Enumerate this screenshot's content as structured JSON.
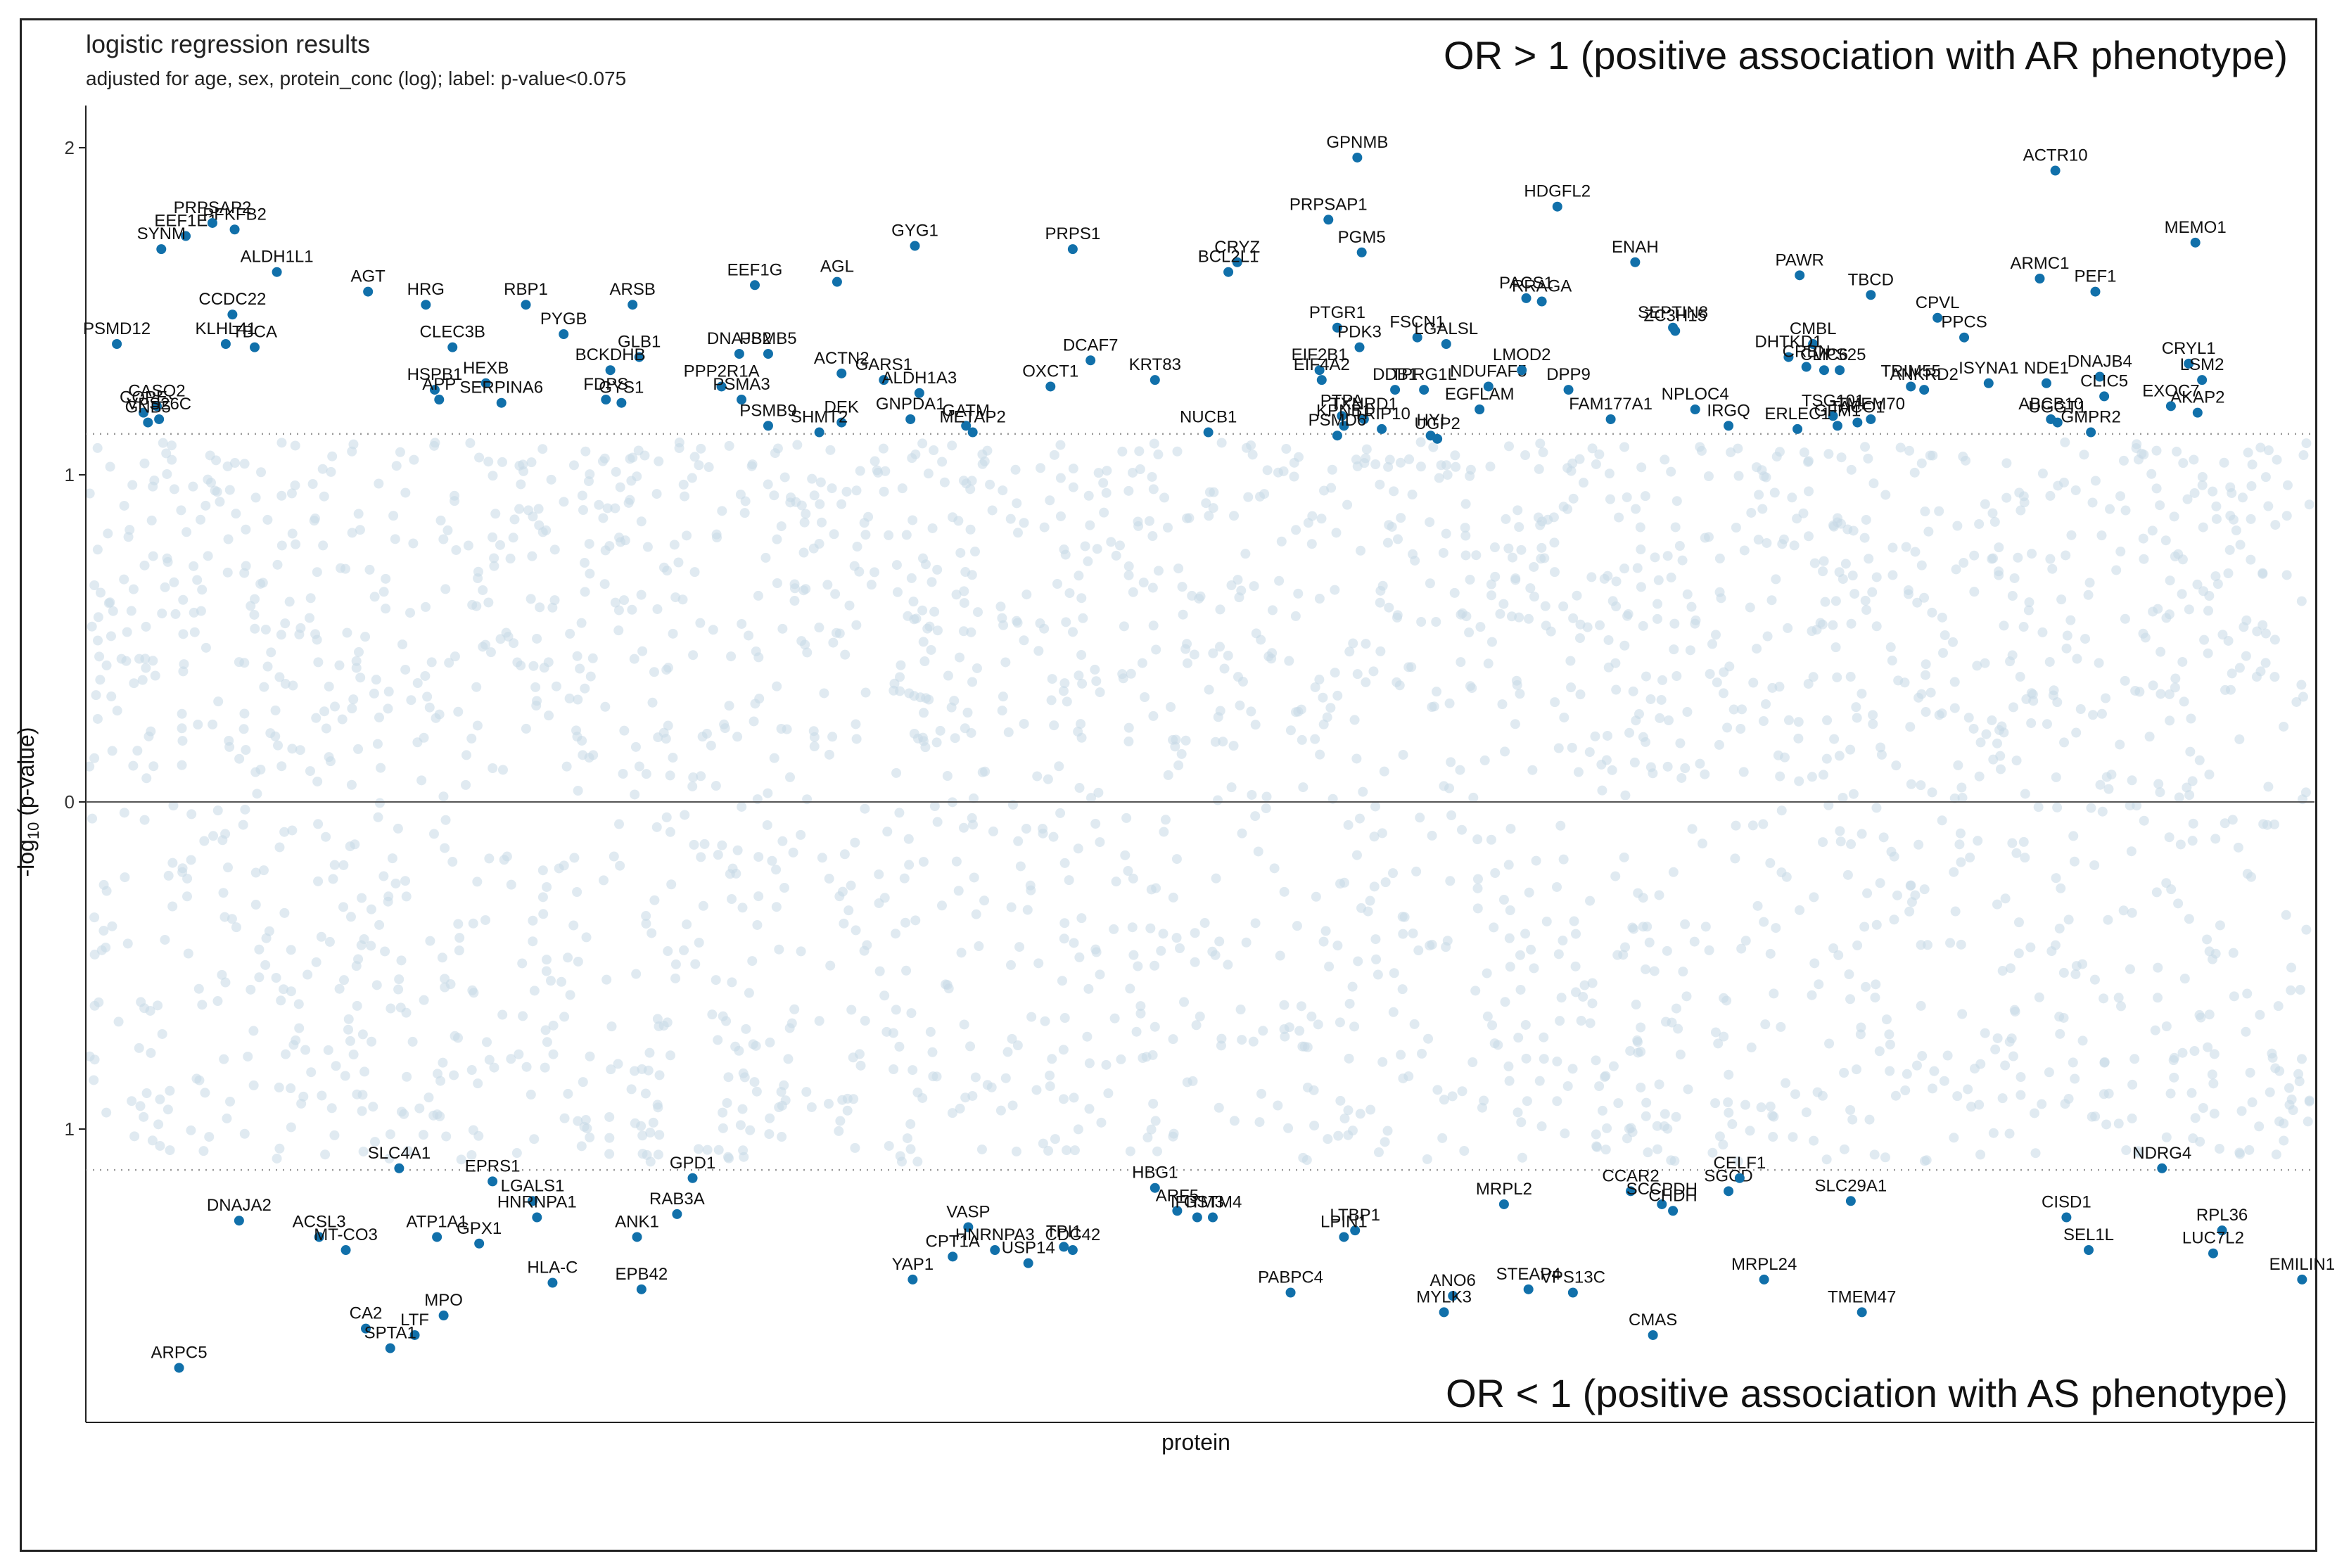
{
  "title": "logistic regression results",
  "subtitle": "adjusted for age, sex, protein_conc (log); label: p-value<0.075",
  "annotation_top": "OR > 1 (positive association with AR phenotype)",
  "annotation_bottom": "OR < 1 (positive association with AS phenotype)",
  "colors": {
    "point": "#1170aa",
    "background_point": "#c6d9e6",
    "axis": "#444444",
    "reference": "#999999"
  },
  "chart_data": {
    "type": "scatter",
    "title": "logistic regression results",
    "subtitle": "adjusted for age, sex, protein_conc (log); label: p-value<0.075",
    "xlabel": "protein",
    "ylabel": "-log10 (p-value)",
    "ylim": [
      -1.95,
      2.1
    ],
    "x_range": [
      0,
      100
    ],
    "y_ticks": [
      {
        "v": 2,
        "label": "2"
      },
      {
        "v": 1,
        "label": "1"
      },
      {
        "v": 0,
        "label": "0"
      },
      {
        "v": -1,
        "label": "1"
      }
    ],
    "threshold": 1.125,
    "background_point_count": 2600,
    "points": [
      {
        "label": "EEF1E1",
        "x": 4.4,
        "y": 1.73
      },
      {
        "label": "PRPSAP2",
        "x": 5.6,
        "y": 1.77
      },
      {
        "label": "PFKFB2",
        "x": 6.6,
        "y": 1.75
      },
      {
        "label": "SYNM",
        "x": 3.3,
        "y": 1.69
      },
      {
        "label": "ALDH1L1",
        "x": 8.5,
        "y": 1.62
      },
      {
        "label": "CCDC22",
        "x": 6.5,
        "y": 1.49
      },
      {
        "label": "KLHL41",
        "x": 6.2,
        "y": 1.4
      },
      {
        "label": "TBCA",
        "x": 7.5,
        "y": 1.39
      },
      {
        "label": "PSMD12",
        "x": 1.3,
        "y": 1.4
      },
      {
        "label": "COPE",
        "x": 2.5,
        "y": 1.19
      },
      {
        "label": "CASQ2",
        "x": 3.1,
        "y": 1.21
      },
      {
        "label": "GNB5",
        "x": 2.7,
        "y": 1.16
      },
      {
        "label": "VPS26C",
        "x": 3.2,
        "y": 1.17
      },
      {
        "label": "AGT",
        "x": 12.6,
        "y": 1.56
      },
      {
        "label": "HRG",
        "x": 15.2,
        "y": 1.52
      },
      {
        "label": "RBP1",
        "x": 19.7,
        "y": 1.52
      },
      {
        "label": "PYGB",
        "x": 21.4,
        "y": 1.43
      },
      {
        "label": "CLEC3B",
        "x": 16.4,
        "y": 1.39
      },
      {
        "label": "HSPB1",
        "x": 15.6,
        "y": 1.26
      },
      {
        "label": "APP",
        "x": 15.8,
        "y": 1.23
      },
      {
        "label": "HEXB",
        "x": 17.9,
        "y": 1.28
      },
      {
        "label": "SERPINA6",
        "x": 18.6,
        "y": 1.22
      },
      {
        "label": "ARSB",
        "x": 24.5,
        "y": 1.52
      },
      {
        "label": "GLB1",
        "x": 24.8,
        "y": 1.36
      },
      {
        "label": "FDPS",
        "x": 23.3,
        "y": 1.23
      },
      {
        "label": "BCKDHB",
        "x": 23.5,
        "y": 1.32
      },
      {
        "label": "GYS1",
        "x": 24.0,
        "y": 1.22
      },
      {
        "label": "EEF1G",
        "x": 30.0,
        "y": 1.58
      },
      {
        "label": "AGL",
        "x": 33.7,
        "y": 1.59
      },
      {
        "label": "GYG1",
        "x": 37.2,
        "y": 1.7
      },
      {
        "label": "DNAJB2",
        "x": 29.3,
        "y": 1.37
      },
      {
        "label": "PPP2R1A",
        "x": 28.5,
        "y": 1.27
      },
      {
        "label": "PSMB5",
        "x": 30.6,
        "y": 1.37
      },
      {
        "label": "PSMA3",
        "x": 29.4,
        "y": 1.23
      },
      {
        "label": "PSMB9",
        "x": 30.6,
        "y": 1.15
      },
      {
        "label": "DEK",
        "x": 33.9,
        "y": 1.16
      },
      {
        "label": "SHMT2",
        "x": 32.9,
        "y": 1.13
      },
      {
        "label": "ACTN2",
        "x": 33.9,
        "y": 1.31
      },
      {
        "label": "GARS1",
        "x": 35.8,
        "y": 1.29
      },
      {
        "label": "ALDH1A3",
        "x": 37.4,
        "y": 1.25
      },
      {
        "label": "GNPDA1",
        "x": 37.0,
        "y": 1.17
      },
      {
        "label": "GATM",
        "x": 39.5,
        "y": 1.15
      },
      {
        "label": "METAP2",
        "x": 39.8,
        "y": 1.13
      },
      {
        "label": "PRPS1",
        "x": 44.3,
        "y": 1.69
      },
      {
        "label": "DCAF7",
        "x": 45.1,
        "y": 1.35
      },
      {
        "label": "OXCT1",
        "x": 43.3,
        "y": 1.27
      },
      {
        "label": "CRYZ",
        "x": 51.7,
        "y": 1.65
      },
      {
        "label": "BCL2L1",
        "x": 51.3,
        "y": 1.62
      },
      {
        "label": "KRT83",
        "x": 48.0,
        "y": 1.29
      },
      {
        "label": "NUCB1",
        "x": 50.4,
        "y": 1.13
      },
      {
        "label": "GPNMB",
        "x": 57.1,
        "y": 1.97
      },
      {
        "label": "PRPSAP1",
        "x": 55.8,
        "y": 1.78
      },
      {
        "label": "PGM5",
        "x": 57.3,
        "y": 1.68
      },
      {
        "label": "PTGR1",
        "x": 56.2,
        "y": 1.45
      },
      {
        "label": "EIF2B1",
        "x": 55.4,
        "y": 1.32
      },
      {
        "label": "EIF4A2",
        "x": 55.5,
        "y": 1.29
      },
      {
        "label": "PDK3",
        "x": 57.2,
        "y": 1.39
      },
      {
        "label": "FSCN1",
        "x": 59.8,
        "y": 1.42
      },
      {
        "label": "LGALSL",
        "x": 61.1,
        "y": 1.4
      },
      {
        "label": "DDB1",
        "x": 58.8,
        "y": 1.26
      },
      {
        "label": "TPRG1L",
        "x": 60.1,
        "y": 1.26
      },
      {
        "label": "PTPA",
        "x": 56.4,
        "y": 1.18
      },
      {
        "label": "TXNRD1",
        "x": 57.4,
        "y": 1.17
      },
      {
        "label": "KPNB1",
        "x": 56.5,
        "y": 1.15
      },
      {
        "label": "PSMD6",
        "x": 56.2,
        "y": 1.12
      },
      {
        "label": "TRIP10",
        "x": 58.2,
        "y": 1.14
      },
      {
        "label": "HYI",
        "x": 60.4,
        "y": 1.12
      },
      {
        "label": "UGP2",
        "x": 60.7,
        "y": 1.11
      },
      {
        "label": "NDUFAF5",
        "x": 63.0,
        "y": 1.27
      },
      {
        "label": "EGFLAM",
        "x": 62.6,
        "y": 1.2
      },
      {
        "label": "LMOD2",
        "x": 64.5,
        "y": 1.32
      },
      {
        "label": "HDGFL2",
        "x": 66.1,
        "y": 1.82
      },
      {
        "label": "PACS1",
        "x": 64.7,
        "y": 1.54
      },
      {
        "label": "RRAGA",
        "x": 65.4,
        "y": 1.53
      },
      {
        "label": "DPP9",
        "x": 66.6,
        "y": 1.26
      },
      {
        "label": "FAM177A1",
        "x": 68.5,
        "y": 1.17
      },
      {
        "label": "ENAH",
        "x": 69.6,
        "y": 1.65
      },
      {
        "label": "SEPTIN8",
        "x": 71.3,
        "y": 1.45
      },
      {
        "label": "ZC3H15",
        "x": 71.4,
        "y": 1.44
      },
      {
        "label": "NPLOC4",
        "x": 72.3,
        "y": 1.2
      },
      {
        "label": "IRGQ",
        "x": 73.8,
        "y": 1.15
      },
      {
        "label": "PAWR",
        "x": 77.0,
        "y": 1.61
      },
      {
        "label": "TBCD",
        "x": 80.2,
        "y": 1.55
      },
      {
        "label": "CMBL",
        "x": 77.6,
        "y": 1.4
      },
      {
        "label": "DHTKD1",
        "x": 76.5,
        "y": 1.36
      },
      {
        "label": "CRBN",
        "x": 77.3,
        "y": 1.33
      },
      {
        "label": "VPS25",
        "x": 78.8,
        "y": 1.32
      },
      {
        "label": "CLIC6",
        "x": 78.1,
        "y": 1.32
      },
      {
        "label": "TSG101",
        "x": 78.5,
        "y": 1.18
      },
      {
        "label": "GFM1",
        "x": 78.7,
        "y": 1.15
      },
      {
        "label": "ERLEC1",
        "x": 76.9,
        "y": 1.14
      },
      {
        "label": "TMEM70",
        "x": 80.2,
        "y": 1.17
      },
      {
        "label": "TACO1",
        "x": 79.6,
        "y": 1.16
      },
      {
        "label": "CPVL",
        "x": 83.2,
        "y": 1.48
      },
      {
        "label": "PPCS",
        "x": 84.4,
        "y": 1.42
      },
      {
        "label": "TRIM55",
        "x": 82.0,
        "y": 1.27
      },
      {
        "label": "ANKRD2",
        "x": 82.6,
        "y": 1.26
      },
      {
        "label": "ISYNA1",
        "x": 85.5,
        "y": 1.28
      },
      {
        "label": "ACTR10",
        "x": 88.5,
        "y": 1.93
      },
      {
        "label": "ARMC1",
        "x": 87.8,
        "y": 1.6
      },
      {
        "label": "PEF1",
        "x": 90.3,
        "y": 1.56
      },
      {
        "label": "NDE1",
        "x": 88.1,
        "y": 1.28
      },
      {
        "label": "DNAJB4",
        "x": 90.5,
        "y": 1.3
      },
      {
        "label": "CLIC5",
        "x": 90.7,
        "y": 1.24
      },
      {
        "label": "ABCB10",
        "x": 88.3,
        "y": 1.17
      },
      {
        "label": "UGGT1",
        "x": 88.6,
        "y": 1.16
      },
      {
        "label": "GMPR2",
        "x": 90.1,
        "y": 1.13
      },
      {
        "label": "MEMO1",
        "x": 94.8,
        "y": 1.71
      },
      {
        "label": "CRYL1",
        "x": 94.5,
        "y": 1.34
      },
      {
        "label": "LSM2",
        "x": 95.1,
        "y": 1.29
      },
      {
        "label": "AKAP2",
        "x": 94.9,
        "y": 1.19
      },
      {
        "label": "EXOC7",
        "x": 93.7,
        "y": 1.21
      },
      {
        "label": "SLC4A1",
        "x": 14.0,
        "y": -1.12
      },
      {
        "label": "EPRS1",
        "x": 18.2,
        "y": -1.16
      },
      {
        "label": "LGALS1",
        "x": 20.0,
        "y": -1.22
      },
      {
        "label": "HNRNPA1",
        "x": 20.2,
        "y": -1.27
      },
      {
        "label": "DNAJA2",
        "x": 6.8,
        "y": -1.28
      },
      {
        "label": "ACSL3",
        "x": 10.4,
        "y": -1.33
      },
      {
        "label": "MT-CO3",
        "x": 11.6,
        "y": -1.37
      },
      {
        "label": "ATP1A1",
        "x": 15.7,
        "y": -1.33
      },
      {
        "label": "GPX1",
        "x": 17.6,
        "y": -1.35
      },
      {
        "label": "GPD1",
        "x": 27.2,
        "y": -1.15
      },
      {
        "label": "RAB3A",
        "x": 26.5,
        "y": -1.26
      },
      {
        "label": "ANK1",
        "x": 24.7,
        "y": -1.33
      },
      {
        "label": "HLA-C",
        "x": 20.9,
        "y": -1.47
      },
      {
        "label": "EPB42",
        "x": 24.9,
        "y": -1.49
      },
      {
        "label": "MPO",
        "x": 16.0,
        "y": -1.57
      },
      {
        "label": "CA2",
        "x": 12.5,
        "y": -1.61
      },
      {
        "label": "LTF",
        "x": 14.7,
        "y": -1.63
      },
      {
        "label": "SPTA1",
        "x": 13.6,
        "y": -1.67
      },
      {
        "label": "ARPC5",
        "x": 4.1,
        "y": -1.73
      },
      {
        "label": "VASP",
        "x": 39.6,
        "y": -1.3
      },
      {
        "label": "HNRNPA3",
        "x": 40.8,
        "y": -1.37
      },
      {
        "label": "CPT1A",
        "x": 38.9,
        "y": -1.39
      },
      {
        "label": "YAP1",
        "x": 37.1,
        "y": -1.46
      },
      {
        "label": "USP14",
        "x": 42.3,
        "y": -1.41
      },
      {
        "label": "TPI1",
        "x": 43.9,
        "y": -1.36
      },
      {
        "label": "CDC42",
        "x": 44.3,
        "y": -1.37
      },
      {
        "label": "HBG1",
        "x": 48.0,
        "y": -1.18
      },
      {
        "label": "ARF5",
        "x": 49.0,
        "y": -1.25
      },
      {
        "label": "IFITM3",
        "x": 49.9,
        "y": -1.27
      },
      {
        "label": "GSTM4",
        "x": 50.6,
        "y": -1.27
      },
      {
        "label": "LTBP1",
        "x": 57.0,
        "y": -1.31
      },
      {
        "label": "LPIN1",
        "x": 56.5,
        "y": -1.33
      },
      {
        "label": "PABPC4",
        "x": 54.1,
        "y": -1.5
      },
      {
        "label": "MRPL2",
        "x": 63.7,
        "y": -1.23
      },
      {
        "label": "ANO6",
        "x": 61.4,
        "y": -1.51
      },
      {
        "label": "MYLK3",
        "x": 61.0,
        "y": -1.56
      },
      {
        "label": "STEAP4",
        "x": 64.8,
        "y": -1.49
      },
      {
        "label": "VPS13C",
        "x": 66.8,
        "y": -1.5
      },
      {
        "label": "CMAS",
        "x": 70.4,
        "y": -1.63
      },
      {
        "label": "CCAR2",
        "x": 69.4,
        "y": -1.19
      },
      {
        "label": "SCCPDH",
        "x": 70.8,
        "y": -1.23
      },
      {
        "label": "CHDH",
        "x": 71.3,
        "y": -1.25
      },
      {
        "label": "SGCD",
        "x": 73.8,
        "y": -1.19
      },
      {
        "label": "CELF1",
        "x": 74.3,
        "y": -1.15
      },
      {
        "label": "SLC29A1",
        "x": 79.3,
        "y": -1.22
      },
      {
        "label": "MRPL24",
        "x": 75.4,
        "y": -1.46
      },
      {
        "label": "TMEM47",
        "x": 79.8,
        "y": -1.56
      },
      {
        "label": "NDRG4",
        "x": 93.3,
        "y": -1.12
      },
      {
        "label": "CISD1",
        "x": 89.0,
        "y": -1.27
      },
      {
        "label": "SEL1L",
        "x": 90.0,
        "y": -1.37
      },
      {
        "label": "RPL36",
        "x": 96.0,
        "y": -1.31
      },
      {
        "label": "LUC7L2",
        "x": 95.6,
        "y": -1.38
      },
      {
        "label": "EMILIN1",
        "x": 99.6,
        "y": -1.46
      }
    ]
  }
}
